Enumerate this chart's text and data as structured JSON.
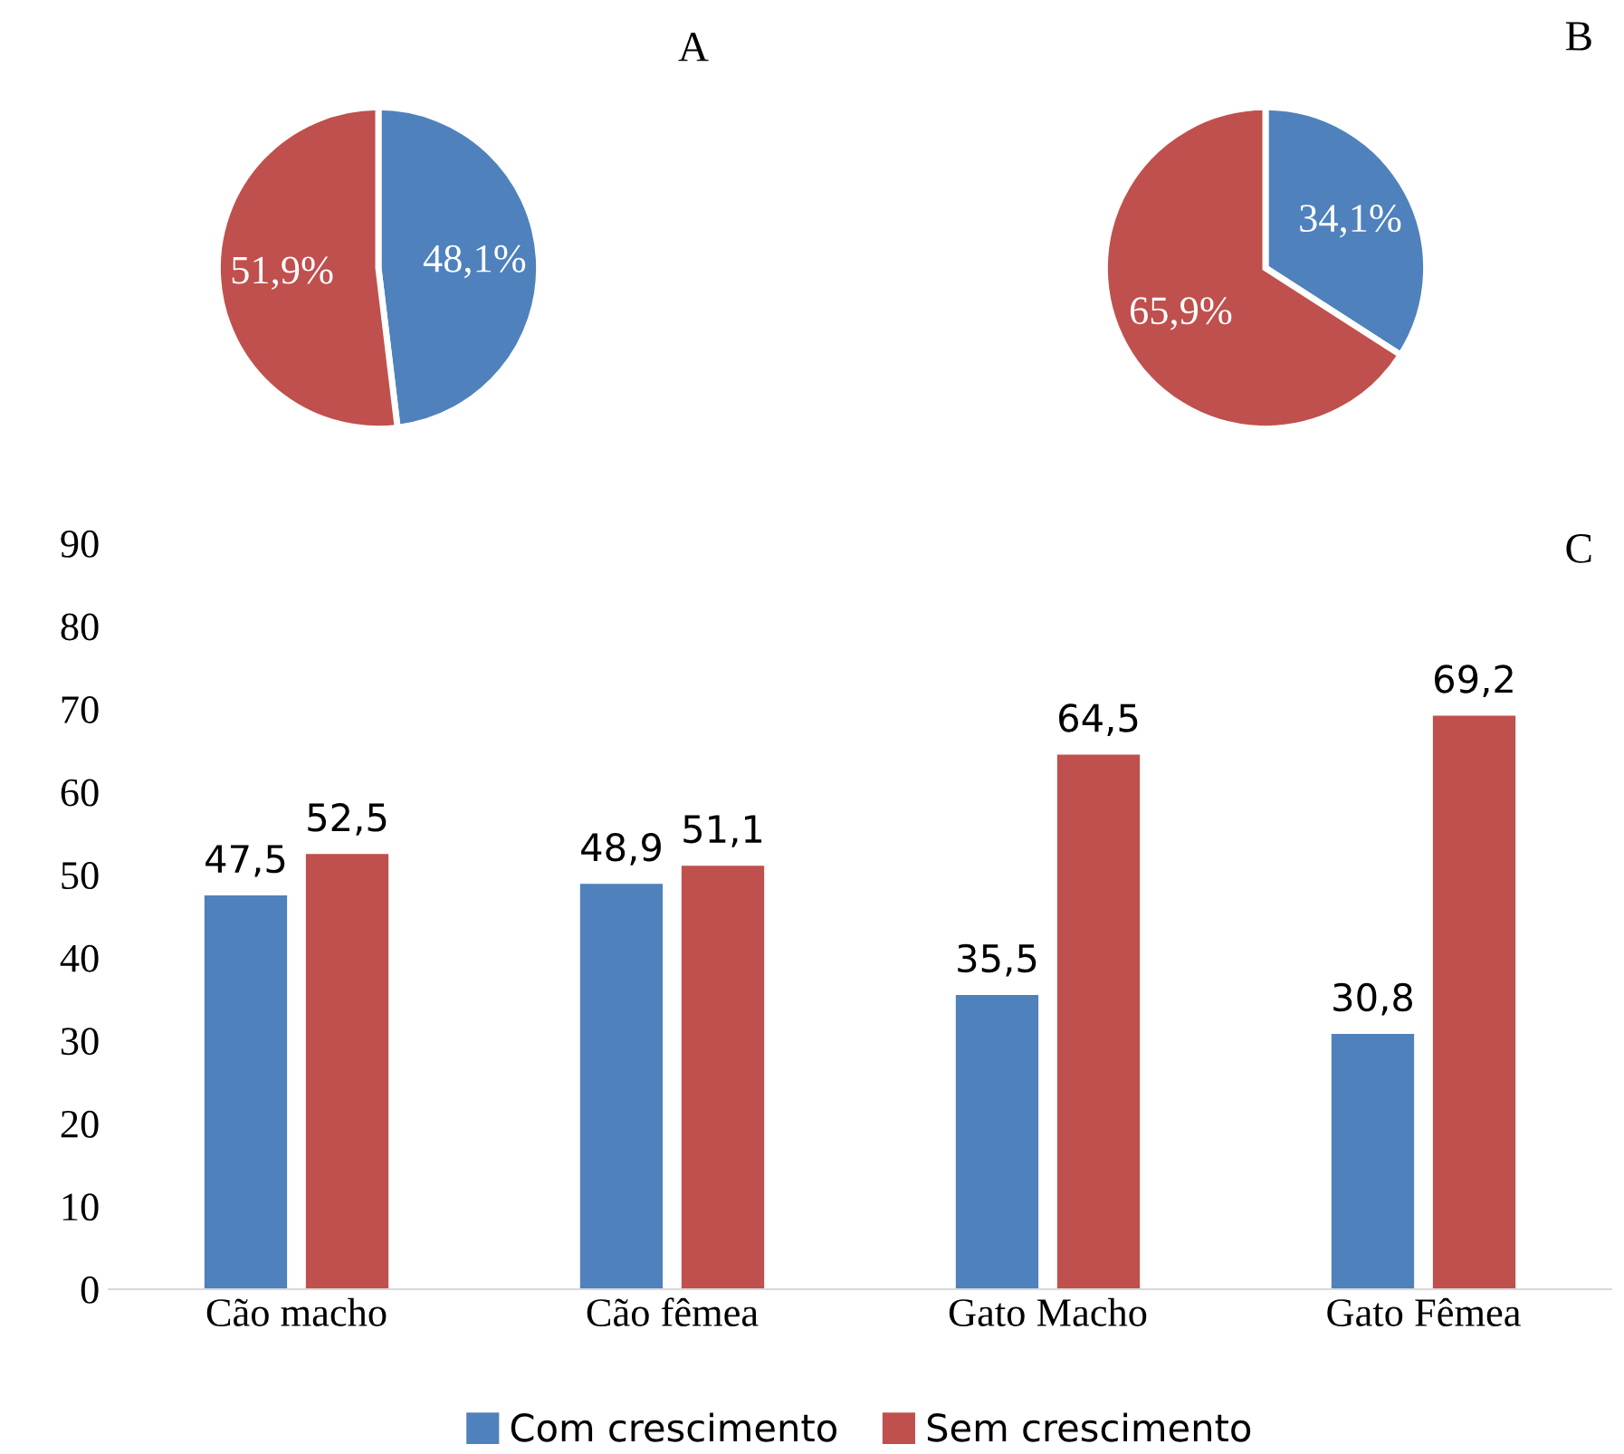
{
  "chart_data": [
    {
      "type": "pie",
      "title": "A",
      "categories": [
        null,
        null
      ],
      "values": [
        48.1,
        51.9
      ],
      "colors": [
        "#4f81bd",
        "#c0504d"
      ],
      "value_labels": [
        "48,1%",
        "51,9%"
      ]
    },
    {
      "type": "pie",
      "title": "B",
      "categories": [
        null,
        null
      ],
      "values": [
        34.1,
        65.9
      ],
      "colors": [
        "#4f81bd",
        "#c0504d"
      ],
      "value_labels": [
        "34,1%",
        "65,9%"
      ]
    },
    {
      "type": "bar",
      "title": "C",
      "categories": [
        "Cão macho",
        "Cão fêmea",
        "Gato Macho",
        "Gato Fêmea"
      ],
      "series": [
        {
          "name": "Com crescimento",
          "color": "#4f81bd",
          "values": [
            47.5,
            48.9,
            35.5,
            30.8
          ],
          "value_labels": [
            "47,5",
            "48,9",
            "35,5",
            "30,8"
          ]
        },
        {
          "name": "Sem crescimento",
          "color": "#c0504d",
          "values": [
            52.5,
            51.1,
            64.5,
            69.2
          ],
          "value_labels": [
            "52,5",
            "51,1",
            "64,5",
            "69,2"
          ]
        }
      ],
      "ylim": [
        0,
        90
      ],
      "yticks": [
        0,
        10,
        20,
        30,
        40,
        50,
        60,
        70,
        80,
        90
      ],
      "grid": false,
      "legend": "bottom"
    }
  ]
}
